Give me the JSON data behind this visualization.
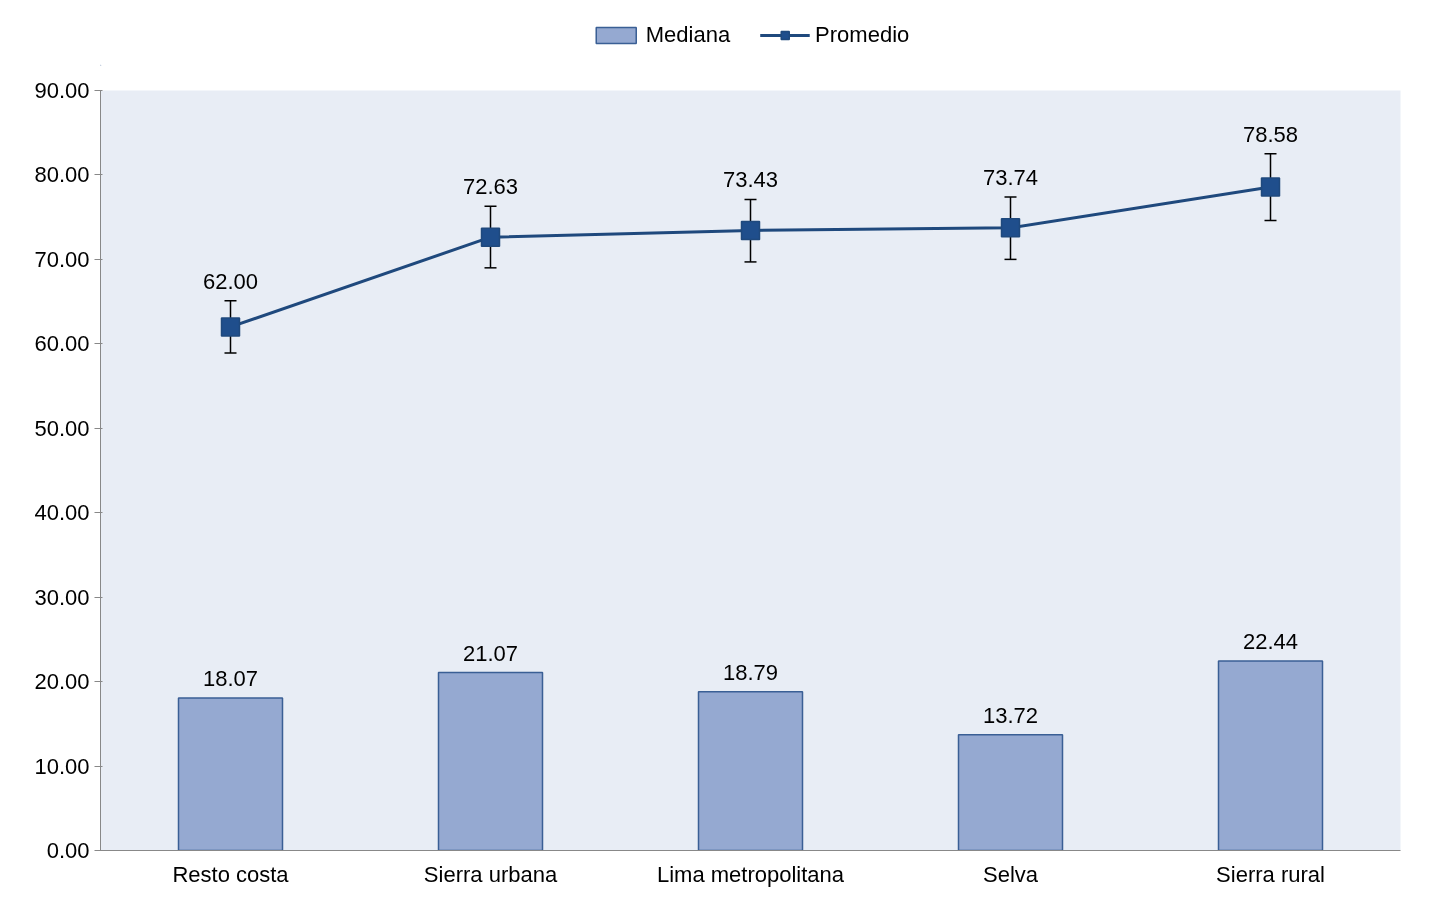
{
  "chart_data": {
    "type": "bar",
    "categories": [
      "Resto costa",
      "Sierra urbana",
      "Lima metropolitana",
      "Selva",
      "Sierra rural"
    ],
    "series": [
      {
        "name": "Mediana",
        "color": "#95a9d1",
        "values": [
          18.07,
          21.07,
          18.79,
          13.72,
          22.44
        ],
        "value_labels": [
          "18.07",
          "21.07",
          "18.79",
          "13.72",
          "22.44"
        ]
      },
      {
        "name": "Promedio",
        "type": "line",
        "color": "#1f497d",
        "marker": "square",
        "values": [
          62.0,
          72.63,
          73.43,
          73.74,
          78.58
        ],
        "value_labels": [
          "62.00",
          "72.63",
          "73.43",
          "73.74",
          "78.58"
        ],
        "errors": [
          [
            58.9,
            65.1
          ],
          [
            69.0,
            76.3
          ],
          [
            69.7,
            77.1
          ],
          [
            70.0,
            77.4
          ],
          [
            74.6,
            82.5
          ]
        ]
      }
    ],
    "ylim": [
      0,
      90
    ],
    "yticks": [
      {
        "value": 0,
        "label": "0.00"
      },
      {
        "value": 10,
        "label": "10.00"
      },
      {
        "value": 20,
        "label": "20.00"
      },
      {
        "value": 30,
        "label": "30.00"
      },
      {
        "value": 40,
        "label": "40.00"
      },
      {
        "value": 50,
        "label": "50.00"
      },
      {
        "value": 60,
        "label": "60.00"
      },
      {
        "value": 70,
        "label": "70.00"
      },
      {
        "value": 80,
        "label": "80.00"
      },
      {
        "value": 90,
        "label": "90.00"
      }
    ],
    "data_labels": true,
    "legend": "top",
    "grid": false
  }
}
